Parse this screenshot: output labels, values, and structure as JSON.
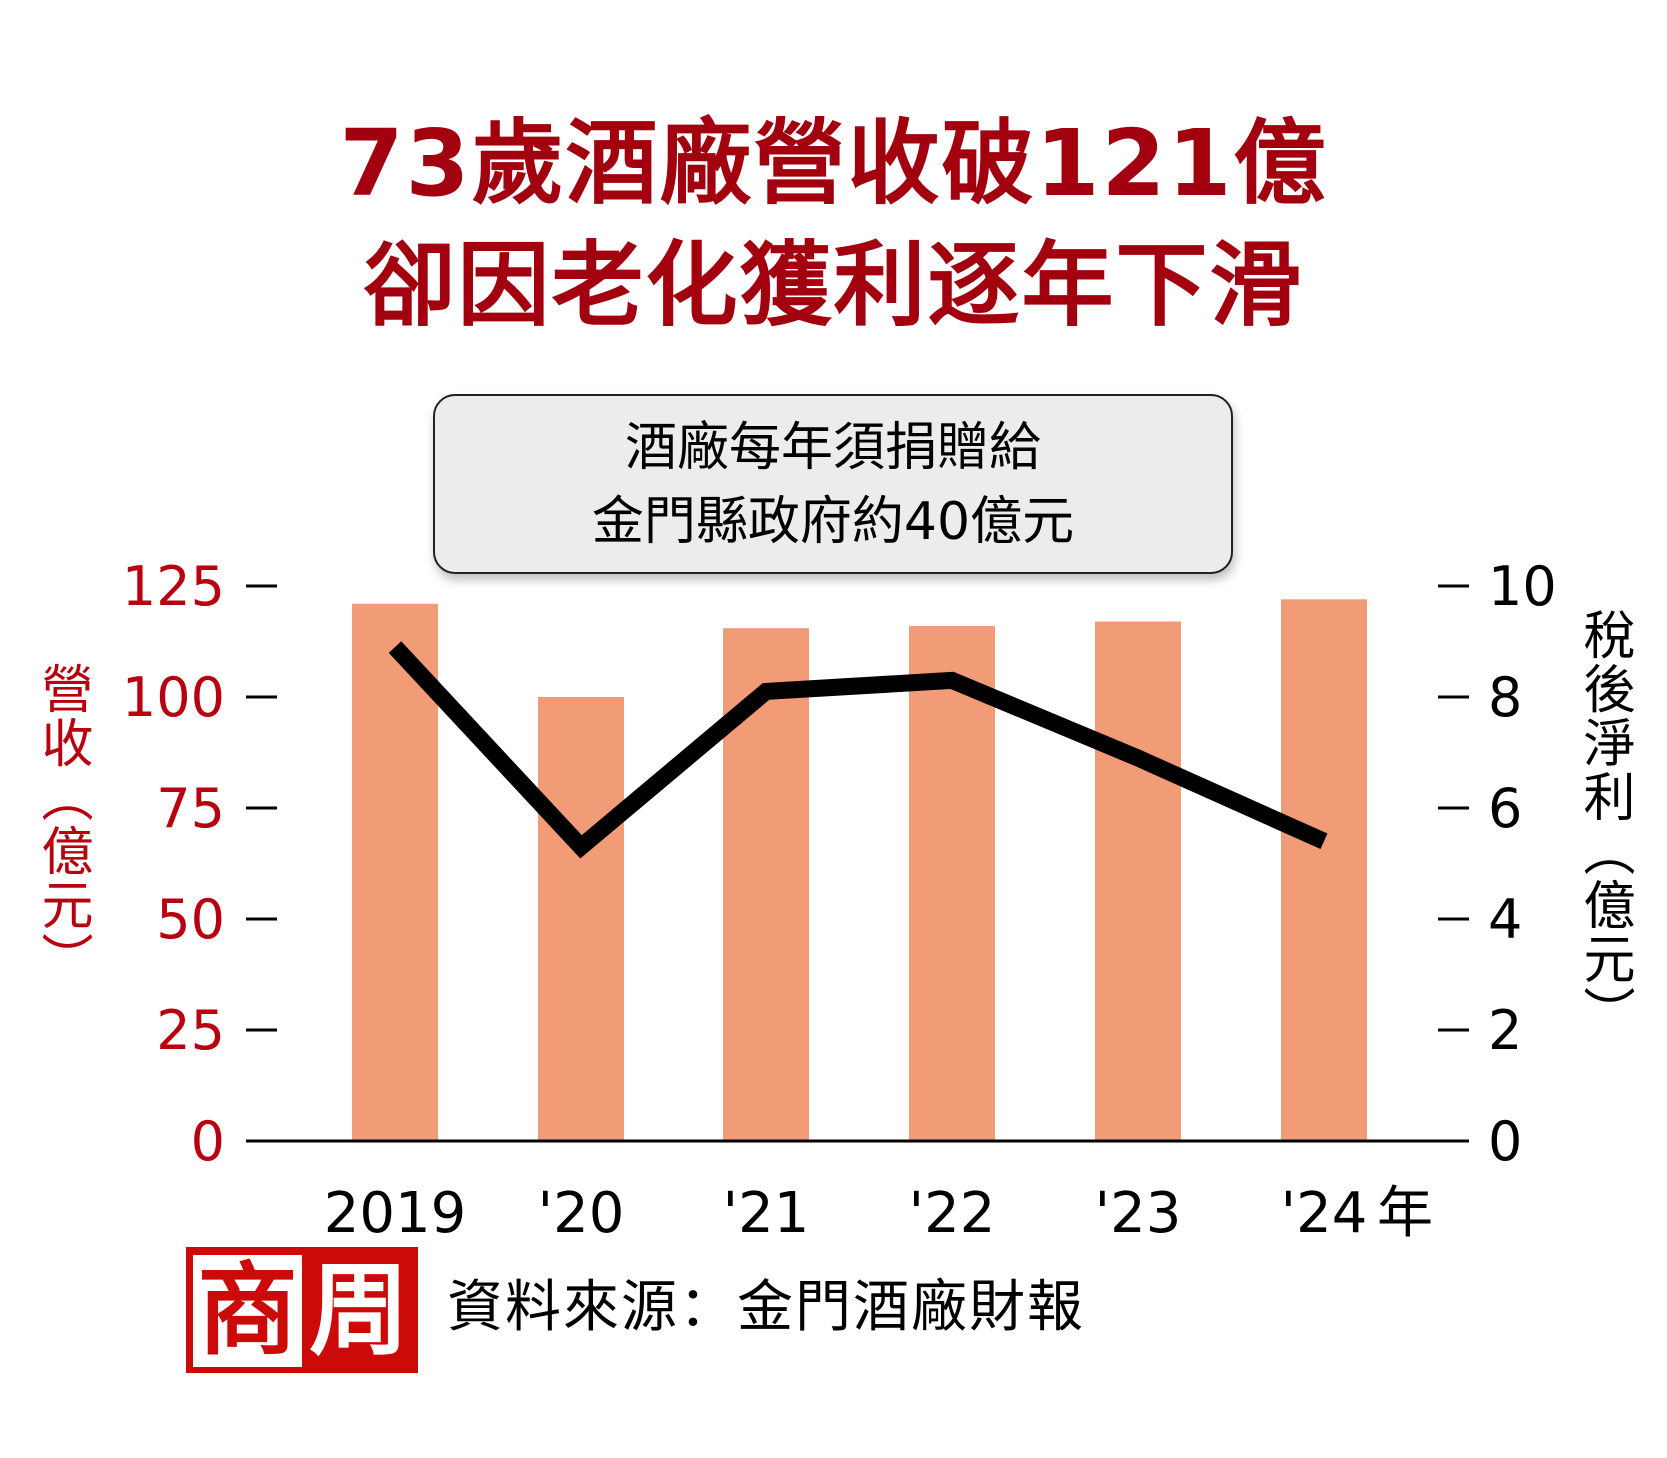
{
  "title": {
    "line1": "73歲酒廠營收破121億",
    "line2": "卻因老化獲利逐年下滑"
  },
  "callout": {
    "line1": "酒廠每年須捐贈給",
    "line2": "金門縣政府約40億元"
  },
  "axes": {
    "left_title": "營收（億元）",
    "right_title": "稅後淨利（億元）",
    "left_ticks": [
      "125",
      "100",
      "75",
      "50",
      "25",
      "0"
    ],
    "right_ticks": [
      "10",
      "8",
      "6",
      "4",
      "2",
      "0"
    ],
    "x_ticks": [
      "2019",
      "'20",
      "'21",
      "'22",
      "'23",
      "'24"
    ],
    "x_unit": "年"
  },
  "footer": {
    "logo_char1": "商",
    "logo_char2": "周",
    "source": "資料來源：金門酒廠財報"
  },
  "colors": {
    "title": "#a3000f",
    "left_axis": "#b8000f",
    "bar": "#f29b77",
    "line": "#000000",
    "logo": "#cc0a0a",
    "callout_bg": "#ececec"
  },
  "chart_data": {
    "type": "bar+line",
    "title": "73歲酒廠營收破121億 卻因老化獲利逐年下滑",
    "categories": [
      "2019",
      "'20",
      "'21",
      "'22",
      "'23",
      "'24"
    ],
    "xlabel": "年",
    "series": [
      {
        "name": "營收（億元）",
        "type": "bar",
        "axis": "left",
        "values": [
          121,
          100,
          115.5,
          116,
          117,
          122
        ]
      },
      {
        "name": "稅後淨利（億元）",
        "type": "line",
        "axis": "right",
        "values": [
          8.9,
          5.3,
          8.1,
          8.3,
          6.9,
          5.4
        ]
      }
    ],
    "ylabel": "營收（億元）",
    "ylim": [
      0,
      125
    ],
    "y2label": "稅後淨利（億元）",
    "y2lim": [
      0,
      10
    ],
    "grid": false,
    "annotations": [
      "酒廠每年須捐贈給金門縣政府約40億元"
    ],
    "source": "資料來源：金門酒廠財報"
  }
}
